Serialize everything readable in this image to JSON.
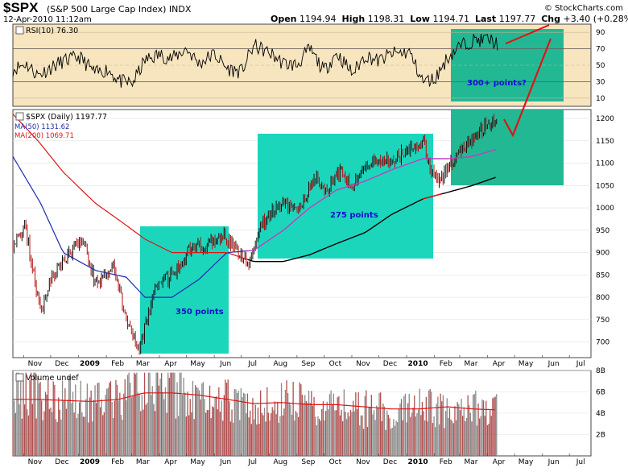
{
  "header": {
    "symbol": "$SPX",
    "description": "(S&P 500 Large Cap Index)  INDX",
    "date": "12-Apr-2010 11:12am",
    "brand": "© StockCharts.com",
    "quote": {
      "open_label": "Open",
      "open": "1194.94",
      "high_label": "High",
      "high": "1198.31",
      "low_label": "Low",
      "low": "1194.71",
      "last_label": "Last",
      "last": "1197.77",
      "chg_label": "Chg",
      "chg": "+3.40 (+0.28%)"
    }
  },
  "colors": {
    "panel_bg": "#f7e5bf",
    "box_teal": "#1cd6bc",
    "box_green": "#22b894",
    "ma50": "#c23dbd",
    "ma200_red": "#e01414",
    "ma200_black": "#000000",
    "ma_legend_blue": "#1c2ab0",
    "price_up": "#111111",
    "price_down": "#b01010",
    "annotation": "#1111cc",
    "volume_bar": "#8a8a8a"
  },
  "chart_data": [
    {
      "type": "line",
      "title": "RSI(10) 76.30",
      "ylim": [
        0,
        100
      ],
      "yticks": [
        10,
        30,
        50,
        70,
        90
      ],
      "reference_lines": [
        30,
        70
      ],
      "series": [
        {
          "name": "RSI(10)",
          "x": [
            "2008-10-20",
            "2008-11-03",
            "2008-11-17",
            "2008-12-01",
            "2008-12-15",
            "2009-01-02",
            "2009-01-20",
            "2009-02-02",
            "2009-02-17",
            "2009-03-02",
            "2009-03-16",
            "2009-04-01",
            "2009-04-15",
            "2009-05-01",
            "2009-05-15",
            "2009-06-01",
            "2009-06-15",
            "2009-07-01",
            "2009-07-15",
            "2009-08-03",
            "2009-08-17",
            "2009-09-01",
            "2009-09-15",
            "2009-10-01",
            "2009-10-15",
            "2009-11-02",
            "2009-11-16",
            "2009-12-01",
            "2009-12-15",
            "2010-01-04",
            "2010-01-19",
            "2010-02-01",
            "2010-02-16",
            "2010-03-01",
            "2010-03-15",
            "2010-04-01",
            "2010-04-12"
          ],
          "values": [
            45,
            52,
            38,
            47,
            55,
            60,
            40,
            45,
            30,
            28,
            56,
            63,
            58,
            70,
            52,
            64,
            46,
            42,
            74,
            64,
            52,
            50,
            70,
            43,
            65,
            40,
            62,
            55,
            64,
            66,
            30,
            33,
            60,
            73,
            80,
            82,
            76.3
          ]
        }
      ]
    },
    {
      "type": "line",
      "title": "$SPX (Daily) 1197.77",
      "ylim": [
        665,
        1220
      ],
      "yticks": [
        700,
        750,
        800,
        850,
        900,
        950,
        1000,
        1050,
        1100,
        1150,
        1200
      ],
      "x_ticks": [
        "Nov",
        "Dec",
        "2009",
        "Feb",
        "Mar",
        "Apr",
        "May",
        "Jun",
        "Jul",
        "Aug",
        "Sep",
        "Oct",
        "Nov",
        "Dec",
        "2010",
        "Feb",
        "Mar",
        "Apr",
        "May",
        "Jun",
        "Jul"
      ],
      "legend": [
        "MA(50) 1131.62",
        "MA(200) 1069.71"
      ],
      "series": [
        {
          "name": "$SPX",
          "x": [
            "2008-10-20",
            "2008-11-03",
            "2008-11-20",
            "2008-12-01",
            "2008-12-15",
            "2009-01-06",
            "2009-01-20",
            "2009-02-09",
            "2009-02-23",
            "2009-03-09",
            "2009-03-26",
            "2009-04-15",
            "2009-05-08",
            "2009-05-28",
            "2009-06-12",
            "2009-06-26",
            "2009-07-08",
            "2009-07-24",
            "2009-08-14",
            "2009-09-01",
            "2009-09-23",
            "2009-10-02",
            "2009-10-20",
            "2009-11-02",
            "2009-11-17",
            "2009-12-01",
            "2009-12-15",
            "2010-01-04",
            "2010-01-19",
            "2010-01-29",
            "2010-02-08",
            "2010-02-22",
            "2010-03-08",
            "2010-03-23",
            "2010-04-12"
          ],
          "values": [
            920,
            960,
            760,
            840,
            880,
            930,
            830,
            870,
            750,
            676,
            815,
            850,
            915,
            920,
            940,
            905,
            875,
            970,
            1010,
            1000,
            1070,
            1030,
            1090,
            1040,
            1100,
            1110,
            1105,
            1130,
            1150,
            1075,
            1060,
            1110,
            1140,
            1170,
            1197.77
          ]
        },
        {
          "name": "MA(50)",
          "x": [
            "2008-10-20",
            "2008-11-20",
            "2008-12-15",
            "2009-01-20",
            "2009-02-23",
            "2009-03-16",
            "2009-04-15",
            "2009-05-15",
            "2009-06-15",
            "2009-07-15",
            "2009-08-17",
            "2009-09-15",
            "2009-10-15",
            "2009-11-16",
            "2009-12-15",
            "2010-01-19",
            "2010-02-16",
            "2010-03-15",
            "2010-04-12"
          ],
          "values": [
            1115,
            1010,
            900,
            860,
            845,
            800,
            800,
            840,
            900,
            905,
            950,
            1000,
            1040,
            1060,
            1085,
            1110,
            1110,
            1115,
            1131.62
          ]
        },
        {
          "name": "MA(200)",
          "x": [
            "2008-10-20",
            "2008-11-17",
            "2008-12-15",
            "2009-01-20",
            "2009-02-17",
            "2009-03-16",
            "2009-04-15",
            "2009-05-15",
            "2009-06-15",
            "2009-07-15",
            "2009-08-17",
            "2009-09-15",
            "2009-10-15",
            "2009-11-16",
            "2009-12-15",
            "2010-01-19",
            "2010-02-16",
            "2010-03-15",
            "2010-04-12"
          ],
          "values": [
            1210,
            1150,
            1080,
            1010,
            970,
            930,
            900,
            900,
            900,
            880,
            880,
            895,
            920,
            945,
            985,
            1020,
            1035,
            1050,
            1069.71
          ]
        }
      ]
    },
    {
      "type": "bar",
      "title": "Volume undef",
      "ylim": [
        0,
        8
      ],
      "ytick_labels": [
        "2B",
        "4B",
        "6B",
        "8B"
      ],
      "yticks": [
        2,
        4,
        6,
        8
      ],
      "x_ticks": [
        "Nov",
        "Dec",
        "2009",
        "Feb",
        "Mar",
        "Apr",
        "May",
        "Jun",
        "Jul",
        "Aug",
        "Sep",
        "Oct",
        "Nov",
        "Dec",
        "2010",
        "Feb",
        "Mar",
        "Apr",
        "May",
        "Jun",
        "Jul"
      ],
      "series": [
        {
          "name": "Volume",
          "x": [
            "2008-11",
            "2008-12",
            "2009-01",
            "2009-02",
            "2009-03",
            "2009-04",
            "2009-05",
            "2009-06",
            "2009-07",
            "2009-08",
            "2009-09",
            "2009-10",
            "2009-11",
            "2009-12",
            "2010-01",
            "2010-02",
            "2010-03",
            "2010-04"
          ],
          "values": [
            6.2,
            5.6,
            5.4,
            6.0,
            7.0,
            6.3,
            6.0,
            5.6,
            4.9,
            5.4,
            5.2,
            5.0,
            4.6,
            4.3,
            4.8,
            4.7,
            4.6,
            4.4
          ]
        },
        {
          "name": "Volume average",
          "x": [
            "2008-11",
            "2008-12",
            "2009-01",
            "2009-02",
            "2009-03",
            "2009-04",
            "2009-05",
            "2009-06",
            "2009-07",
            "2009-08",
            "2009-09",
            "2009-10",
            "2009-11",
            "2009-12",
            "2010-01",
            "2010-02",
            "2010-03",
            "2010-04"
          ],
          "values": [
            5.3,
            5.2,
            5.1,
            5.3,
            5.9,
            5.9,
            5.7,
            5.3,
            4.9,
            5.0,
            4.8,
            4.8,
            4.6,
            4.4,
            4.4,
            4.6,
            4.4,
            4.3
          ]
        }
      ]
    }
  ],
  "annotations": {
    "box1_label": "350 points",
    "box2_label": "275 points",
    "box3_label": "300+ points?"
  }
}
